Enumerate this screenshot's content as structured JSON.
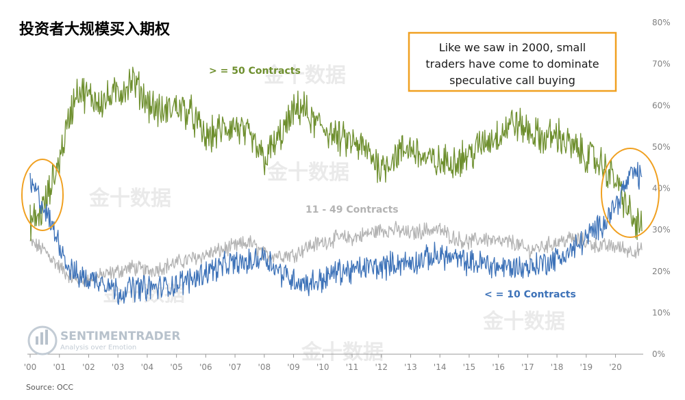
{
  "header": {
    "title": "投资者大规模买入期权",
    "source": "Source: OCC"
  },
  "annotation": {
    "lines": [
      "Like we saw in 2000, small",
      "traders have come to dominate",
      "speculative call buying"
    ]
  },
  "branding": {
    "logo_name": "SENTIMENTRADER",
    "logo_tagline": "Analysis over Emotion",
    "watermark": "金十数据"
  },
  "colors": {
    "large": "#6e8f2e",
    "medium": "#b3b3b3",
    "small": "#3d72b8",
    "highlight": "#f0a020"
  },
  "chart_data": {
    "type": "line",
    "title": "投资者大规模买入期权",
    "x_range": [
      2000.0,
      2020.9
    ],
    "x_tick_labels": [
      "'00",
      "'01",
      "'02",
      "'03",
      "'04",
      "'05",
      "'06",
      "'07",
      "'08",
      "'09",
      "'10",
      "'11",
      "'12",
      "'13",
      "'14",
      "'15",
      "'16",
      "'17",
      "'18",
      "'19",
      "'20"
    ],
    "y_axis": {
      "side": "right",
      "range": [
        0,
        80
      ],
      "unit": "%",
      "tick_labels": [
        "0%",
        "10%",
        "20%",
        "30%",
        "40%",
        "50%",
        "60%",
        "70%",
        "80%"
      ]
    },
    "grid": false,
    "legend": "inline labels",
    "series": [
      {
        "name": "> = 50 Contracts",
        "x": [
          2000.0,
          2000.3,
          2000.6,
          2001.0,
          2001.3,
          2001.6,
          2002.0,
          2002.5,
          2003.0,
          2003.5,
          2004.0,
          2004.5,
          2005.0,
          2005.5,
          2006.0,
          2006.5,
          2007.0,
          2007.5,
          2008.0,
          2008.5,
          2009.0,
          2009.3,
          2009.6,
          2010.0,
          2010.5,
          2011.0,
          2011.5,
          2012.0,
          2012.5,
          2013.0,
          2013.5,
          2014.0,
          2014.5,
          2015.0,
          2015.5,
          2016.0,
          2016.5,
          2017.0,
          2017.5,
          2018.0,
          2018.5,
          2019.0,
          2019.5,
          2020.0,
          2020.3,
          2020.6,
          2020.8
        ],
        "values": [
          32,
          33,
          38,
          47,
          56,
          64,
          62,
          61,
          63,
          66,
          61,
          58,
          60,
          58,
          52,
          54,
          55,
          52,
          47,
          52,
          58,
          60,
          56,
          55,
          52,
          51,
          49,
          45,
          48,
          50,
          47,
          46,
          47,
          48,
          51,
          53,
          56,
          54,
          52,
          53,
          50,
          48,
          46,
          42,
          37,
          32,
          31
        ]
      },
      {
        "name": "11 - 49 Contracts",
        "x": [
          2000.0,
          2000.5,
          2001.0,
          2001.5,
          2002.0,
          2002.5,
          2003.0,
          2003.5,
          2004.0,
          2004.5,
          2005.0,
          2005.5,
          2006.0,
          2006.5,
          2007.0,
          2007.5,
          2008.0,
          2008.5,
          2009.0,
          2009.5,
          2010.0,
          2010.5,
          2011.0,
          2011.5,
          2012.0,
          2012.5,
          2013.0,
          2013.5,
          2014.0,
          2014.5,
          2015.0,
          2015.5,
          2016.0,
          2016.5,
          2017.0,
          2017.5,
          2018.0,
          2018.5,
          2019.0,
          2019.5,
          2020.0,
          2020.5,
          2020.8
        ],
        "values": [
          27,
          25,
          21,
          18,
          18,
          19,
          20,
          21,
          20,
          21,
          22,
          23,
          24,
          25,
          26,
          27,
          24,
          24,
          24,
          26,
          27,
          28,
          28,
          29,
          30,
          30,
          29,
          30,
          30,
          28,
          27,
          28,
          27,
          27,
          25,
          26,
          27,
          28,
          27,
          26,
          26,
          25,
          25
        ]
      },
      {
        "name": "< = 10 Contracts",
        "x": [
          2000.0,
          2000.3,
          2000.6,
          2001.0,
          2001.3,
          2001.6,
          2002.0,
          2002.5,
          2003.0,
          2003.5,
          2004.0,
          2004.5,
          2005.0,
          2005.5,
          2006.0,
          2006.5,
          2007.0,
          2007.5,
          2008.0,
          2008.5,
          2009.0,
          2009.5,
          2010.0,
          2010.5,
          2011.0,
          2011.5,
          2012.0,
          2012.5,
          2013.0,
          2013.5,
          2014.0,
          2014.5,
          2015.0,
          2015.5,
          2016.0,
          2016.5,
          2017.0,
          2017.5,
          2018.0,
          2018.5,
          2019.0,
          2019.5,
          2020.0,
          2020.3,
          2020.6,
          2020.8
        ],
        "values": [
          41,
          38,
          33,
          27,
          21,
          19,
          18,
          18,
          15,
          16,
          16,
          16,
          17,
          18,
          20,
          21,
          22,
          22,
          24,
          20,
          18,
          17,
          18,
          20,
          20,
          21,
          21,
          22,
          22,
          23,
          24,
          23,
          22,
          22,
          21,
          21,
          21,
          22,
          23,
          25,
          28,
          31,
          36,
          40,
          44,
          43
        ]
      }
    ]
  }
}
